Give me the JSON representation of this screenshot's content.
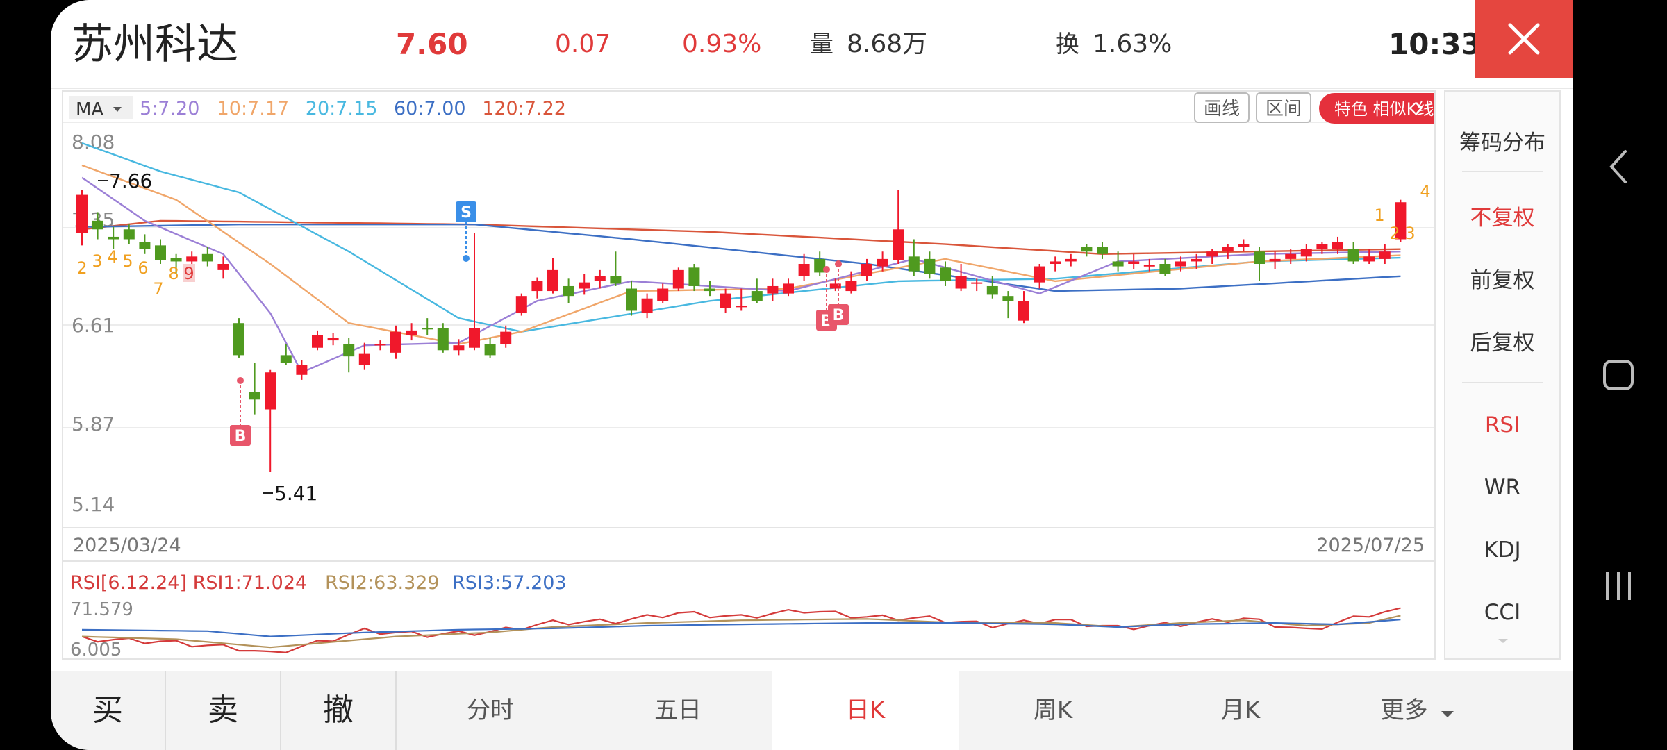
{
  "header": {
    "stock_name": "苏州科达",
    "price": "7.60",
    "change": "0.07",
    "change_pct": "0.93%",
    "volume_label": "量",
    "volume_value": "8.68万",
    "turnover_label": "换",
    "turnover_value": "1.63%",
    "clock": "10:33"
  },
  "chart": {
    "ma_selector": "MA",
    "ma_legend": [
      {
        "text": "5:7.20",
        "color": "#9b7fd6"
      },
      {
        "text": "10:7.17",
        "color": "#f0a66a"
      },
      {
        "text": "20:7.15",
        "color": "#48b8e0"
      },
      {
        "text": "60:7.00",
        "color": "#3c6fc4"
      },
      {
        "text": "120:7.22",
        "color": "#d9553a"
      }
    ],
    "draw_button": "画线",
    "range_button": "区间",
    "feature_button": "特色  相似K线",
    "y_ticks": [
      "8.08",
      "7.35",
      "6.61",
      "5.87",
      "5.14"
    ],
    "max_marker": "7.66",
    "min_marker": "5.41",
    "date_start": "2025/03/24",
    "date_end": "2025/07/25",
    "signals": {
      "sell": "S",
      "buy": "B"
    },
    "td_counts_left": [
      "2",
      "3",
      "4",
      "5",
      "6",
      "7",
      "8",
      "9"
    ],
    "td_counts_right": [
      "1",
      "2",
      "3",
      "4"
    ],
    "rsi_legend": [
      {
        "text": "RSI[6.12.24] RSI1:71.024",
        "color": "#d43a3a"
      },
      {
        "text": "RSI2:63.329",
        "color": "#b3925a"
      },
      {
        "text": "RSI3:57.203",
        "color": "#3c6fc4"
      }
    ],
    "rsi_top": "71.579",
    "rsi_bottom": "6.005",
    "colors": {
      "up": "#f0182b",
      "down": "#4f9a1f",
      "grid": "#ececec"
    }
  },
  "side_panel": {
    "items": [
      {
        "label": "筹码分布",
        "active": false
      },
      {
        "label": "不复权",
        "active": true
      },
      {
        "label": "前复权",
        "active": false
      },
      {
        "label": "后复权",
        "active": false
      },
      {
        "label": "RSI",
        "active": true
      },
      {
        "label": "WR",
        "active": false
      },
      {
        "label": "KDJ",
        "active": false
      },
      {
        "label": "CCI",
        "active": false
      }
    ]
  },
  "bottom_tabs": [
    {
      "label": "买"
    },
    {
      "label": "卖"
    },
    {
      "label": "撤"
    },
    {
      "label": "分时"
    },
    {
      "label": "五日"
    },
    {
      "label": "日K"
    },
    {
      "label": "周K"
    },
    {
      "label": "月K"
    },
    {
      "label": "更多"
    }
  ]
}
